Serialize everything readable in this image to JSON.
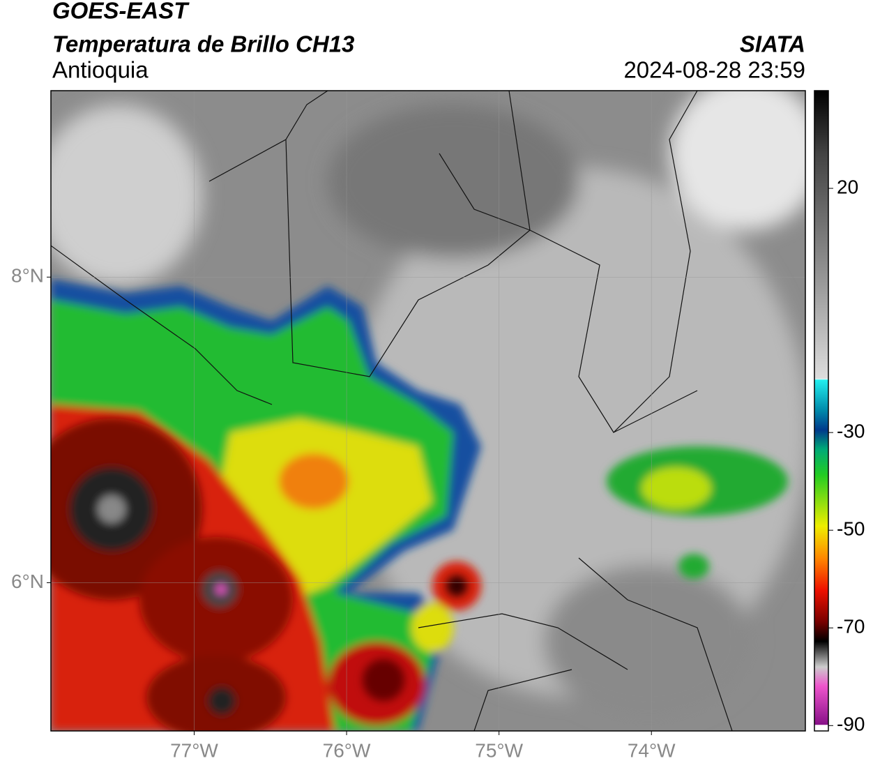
{
  "header": {
    "satellite": "GOES-EAST",
    "product": "Temperatura de Brillo CH13",
    "region": "Antioquia",
    "source": "SIATA",
    "datetime": "2024-08-28 23:59"
  },
  "map": {
    "xlim": [
      -77.94,
      -72.99
    ],
    "ylim": [
      5.03,
      9.22
    ],
    "xticks": [
      {
        "value": -77,
        "label": "77°W"
      },
      {
        "value": -76,
        "label": "76°W"
      },
      {
        "value": -75,
        "label": "75°W"
      },
      {
        "value": -74,
        "label": "74°W"
      }
    ],
    "yticks": [
      {
        "value": 8,
        "label": "8°N"
      },
      {
        "value": 6,
        "label": "6°N"
      }
    ]
  },
  "colorbar": {
    "lim": [
      -91.1,
      40
    ],
    "ticks": [
      20,
      -30,
      -50,
      -70,
      -90
    ]
  }
}
